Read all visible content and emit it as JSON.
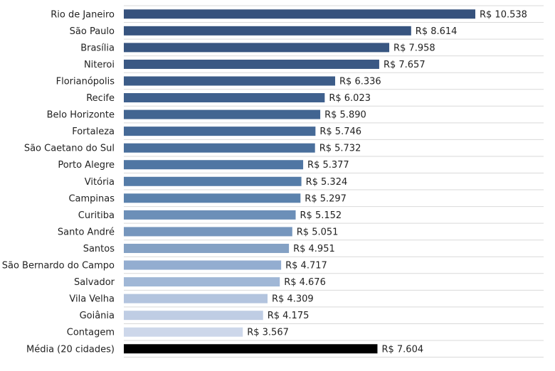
{
  "chart_data": {
    "type": "bar",
    "orientation": "horizontal",
    "title": "",
    "xlabel": "",
    "ylabel": "",
    "currency_prefix": "R$ ",
    "grid": true,
    "legend": "none",
    "xlim": [
      0,
      10538
    ],
    "categories": [
      "Rio de Janeiro",
      "São Paulo",
      "Brasília",
      "Niteroi",
      "Florianópolis",
      "Recife",
      "Belo Horizonte",
      "Fortaleza",
      "São Caetano do Sul",
      "Porto Alegre",
      "Vitória",
      "Campinas",
      "Curitiba",
      "Santo André",
      "Santos",
      "São Bernardo do Campo",
      "Salvador",
      "Vila Velha",
      "Goiânia",
      "Contagem",
      "Média (20 cidades)"
    ],
    "values": [
      10538,
      8614,
      7958,
      7657,
      6336,
      6023,
      5890,
      5746,
      5732,
      5377,
      5324,
      5297,
      5152,
      5051,
      4951,
      4717,
      4676,
      4309,
      4175,
      3567,
      7604
    ],
    "value_labels": [
      "R$ 10.538",
      "R$ 8.614",
      "R$ 7.958",
      "R$ 7.657",
      "R$ 6.336",
      "R$ 6.023",
      "R$ 5.890",
      "R$ 5.746",
      "R$ 5.732",
      "R$ 5.377",
      "R$ 5.324",
      "R$ 5.297",
      "R$ 5.152",
      "R$ 5.051",
      "R$ 4.951",
      "R$ 4.717",
      "R$ 4.676",
      "R$ 4.309",
      "R$ 4.175",
      "R$ 3.567",
      "R$ 7.604"
    ],
    "colors": [
      "#36527d",
      "#37547f",
      "#385681",
      "#3a5884",
      "#3c5c88",
      "#3f608d",
      "#426591",
      "#466a97",
      "#4a6f9c",
      "#4f76a3",
      "#557ca8",
      "#5b82ad",
      "#6c8fb8",
      "#7696bd",
      "#84a1c4",
      "#93add0",
      "#a0b7d6",
      "#b3c4de",
      "#bfcde4",
      "#cdd7ea",
      "#000000"
    ]
  }
}
